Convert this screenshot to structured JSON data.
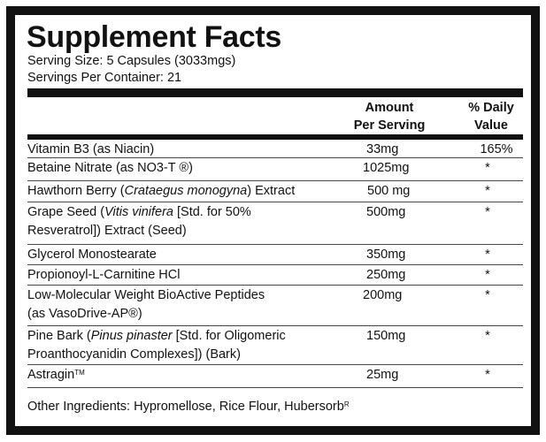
{
  "title": "Supplement Facts",
  "serving_size": "Serving Size: 5 Capsules (3033mgs)",
  "servings_per_container": "Servings Per Container: 21",
  "headers": {
    "amount_line1": "Amount",
    "amount_line2": "Per Serving",
    "dv_line1": "% Daily",
    "dv_line2": "Value"
  },
  "rows": [
    {
      "name_lines": [
        [
          {
            "t": "Vitamin B3 (as Niacin)"
          }
        ]
      ],
      "amount": "33mg",
      "dv": "165%"
    },
    {
      "name_lines": [
        [
          {
            "t": "Betaine Nitrate (as NO3-T ®)"
          }
        ]
      ],
      "amount": "1025mg",
      "dv": "*"
    },
    {
      "name_lines": [
        [
          {
            "t": "Hawthorn Berry ("
          },
          {
            "t": "Crataegus monogyna",
            "i": true
          },
          {
            "t": ") Extract"
          }
        ]
      ],
      "amount": "500 mg",
      "dv": "*"
    },
    {
      "name_lines": [
        [
          {
            "t": "Grape Seed ("
          },
          {
            "t": "Vitis vinifera",
            "i": true
          },
          {
            "t": " [Std. for 50%"
          }
        ],
        [
          {
            "t": "Resveratrol]) Extract (Seed)"
          }
        ]
      ],
      "amount": "500mg",
      "dv": "*"
    },
    {
      "name_lines": [
        [
          {
            "t": "Glycerol Monostearate"
          }
        ]
      ],
      "amount": "350mg",
      "dv": "*"
    },
    {
      "name_lines": [
        [
          {
            "t": "Propionoyl-L-Carnitine HCl"
          }
        ]
      ],
      "amount": "250mg",
      "dv": "*"
    },
    {
      "name_lines": [
        [
          {
            "t": "Low-Molecular Weight BioActive Peptides"
          }
        ],
        [
          {
            "t": "(as VasoDrive-AP®)"
          }
        ]
      ],
      "amount": "200mg",
      "dv": "*"
    },
    {
      "name_lines": [
        [
          {
            "t": "Pine Bark ("
          },
          {
            "t": "Pinus pinaster",
            "i": true
          },
          {
            "t": " [Std. for Oligomeric"
          }
        ],
        [
          {
            "t": "Proanthocyanidin Complexes]) (Bark)"
          }
        ]
      ],
      "amount": "150mg",
      "dv": "*"
    },
    {
      "name_lines": [
        [
          {
            "t": "Astragin"
          },
          {
            "t": "TM",
            "sup": true
          }
        ]
      ],
      "amount": "25mg",
      "dv": "*"
    }
  ],
  "other_ingredients": "Other Ingredients: Hypromellose, Rice Flour, Hubersorb",
  "other_ingredients_mark": "R"
}
